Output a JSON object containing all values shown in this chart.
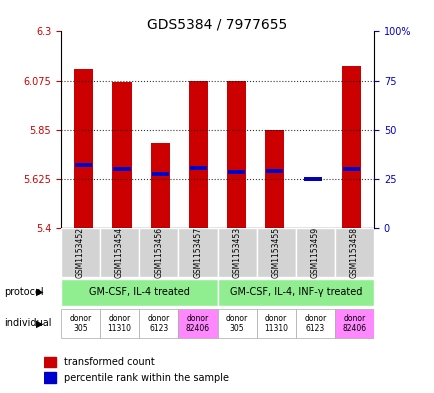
{
  "title": "GDS5384 / 7977655",
  "samples": [
    "GSM1153452",
    "GSM1153454",
    "GSM1153456",
    "GSM1153457",
    "GSM1153453",
    "GSM1153455",
    "GSM1153459",
    "GSM1153458"
  ],
  "bar_values": [
    6.13,
    6.07,
    5.79,
    6.075,
    6.075,
    5.85,
    5.4,
    6.14
  ],
  "percentile_values": [
    5.69,
    5.67,
    5.645,
    5.675,
    5.655,
    5.66,
    5.625,
    5.67
  ],
  "ylim": [
    5.4,
    6.3
  ],
  "yticks_left": [
    5.4,
    5.625,
    5.85,
    6.075,
    6.3
  ],
  "yticks_right": [
    0,
    25,
    50,
    75,
    100
  ],
  "right_tick_labels": [
    "0",
    "25",
    "50",
    "75",
    "100%"
  ],
  "bar_color": "#cc0000",
  "percentile_color": "#0000cc",
  "dotted_line_y": [
    5.625,
    5.85,
    6.075
  ],
  "protocol_labels": [
    "GM-CSF, IL-4 treated",
    "GM-CSF, IL-4, INF-γ treated"
  ],
  "protocol_color": "#90ee90",
  "individual_colors": [
    "#ffffff",
    "#ffffff",
    "#ffffff",
    "#ff88ff",
    "#ffffff",
    "#ffffff",
    "#ffffff",
    "#ff88ff"
  ],
  "indiv_labels": [
    "donor\n305",
    "donor\n11310",
    "donor\n6123",
    "donor\n82406",
    "donor\n305",
    "donor\n11310",
    "donor\n6123",
    "donor\n82406"
  ],
  "background_color": "#ffffff",
  "bar_width": 0.5,
  "axis_label_color_left": "#cc0000",
  "axis_label_color_right": "#0000cc"
}
